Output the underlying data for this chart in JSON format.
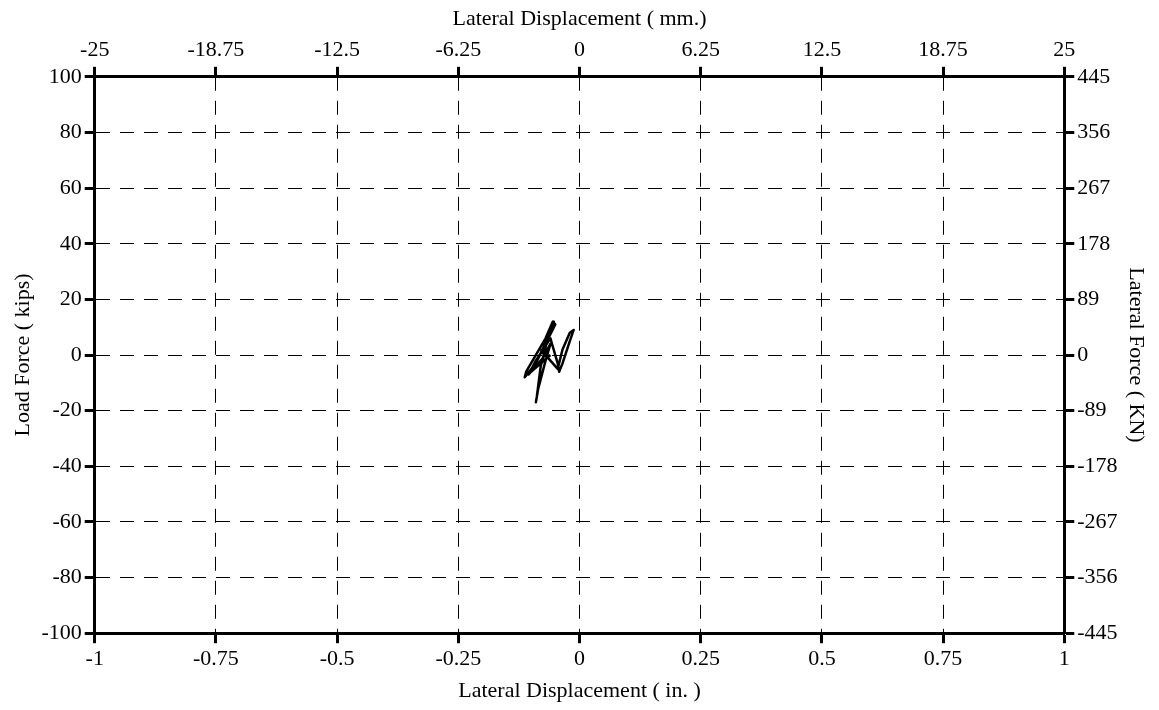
{
  "chart_data": {
    "type": "line",
    "xlabel": "Lateral Displacement ( in. )",
    "ylabel": "Load Force ( kips)",
    "x2label": "Lateral Displacement ( mm.)",
    "y2label": "Lateral Force ( KN)",
    "xlim": [
      -1,
      1
    ],
    "xticks": [
      -1,
      -0.75,
      -0.5,
      -0.25,
      0,
      0.25,
      0.5,
      0.75,
      1
    ],
    "ylim": [
      -100,
      100
    ],
    "yticks": [
      -100,
      -80,
      -60,
      -40,
      -20,
      0,
      20,
      40,
      60,
      80,
      100
    ],
    "x2lim": [
      -25,
      25
    ],
    "x2ticks": [
      -25,
      -18.75,
      -12.5,
      -6.25,
      0,
      6.25,
      12.5,
      18.75,
      25
    ],
    "y2lim": [
      -445,
      445
    ],
    "y2ticks": [
      -445,
      -356,
      -267,
      -178,
      -89,
      0,
      89,
      178,
      267,
      356,
      445
    ],
    "grid": true,
    "marker": "none",
    "line_style": "solid",
    "series": [
      {
        "color": "#000000",
        "x": [
          -0.06,
          -0.1,
          -0.07,
          -0.05,
          -0.055,
          -0.07,
          -0.11,
          -0.113,
          -0.09,
          -0.06,
          -0.053,
          -0.065,
          -0.08,
          -0.088,
          -0.09,
          -0.085,
          -0.07,
          -0.06,
          -0.075,
          -0.105,
          -0.09,
          -0.06,
          -0.045,
          -0.042,
          -0.035,
          -0.02,
          -0.012,
          -0.02,
          -0.035,
          -0.045,
          -0.06,
          -0.08
        ],
        "values": [
          0,
          -6,
          4,
          11,
          12,
          6,
          -6,
          -8,
          -3,
          8,
          12,
          6,
          -4,
          -15,
          -17,
          -12,
          -2,
          4,
          -1,
          -7,
          -2,
          6,
          -3,
          -6,
          -3,
          5,
          9,
          8,
          2,
          -5,
          -2,
          2
        ]
      }
    ]
  }
}
